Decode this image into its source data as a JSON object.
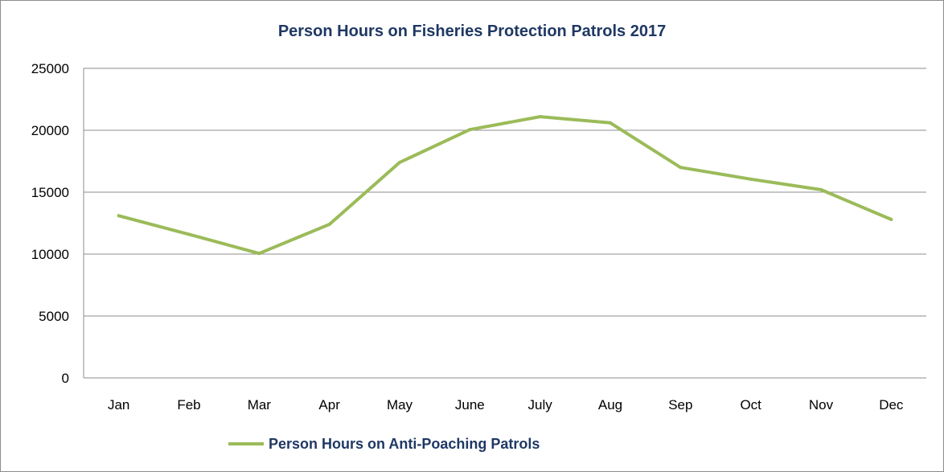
{
  "chart_data": {
    "type": "line",
    "title": "Person Hours on Fisheries Protection Patrols 2017",
    "xlabel": "",
    "ylabel": "",
    "categories": [
      "Jan",
      "Feb",
      "Mar",
      "Apr",
      "May",
      "June",
      "July",
      "Aug",
      "Sep",
      "Oct",
      "Nov",
      "Dec"
    ],
    "series": [
      {
        "name": "Person Hours on Anti-Poaching Patrols",
        "values": [
          13100,
          11600,
          10050,
          12400,
          17400,
          20050,
          21100,
          20600,
          17000,
          16050,
          15200,
          12800
        ],
        "color": "#9bbb59"
      }
    ],
    "ylim": [
      0,
      25000
    ],
    "yticks": [
      0,
      5000,
      10000,
      15000,
      20000,
      25000
    ],
    "grid": "horizontal",
    "legend_position": "bottom"
  },
  "colors": {
    "title": "#1f3864",
    "gridline": "#8c8c8c",
    "series_line": "#9bbb59"
  }
}
